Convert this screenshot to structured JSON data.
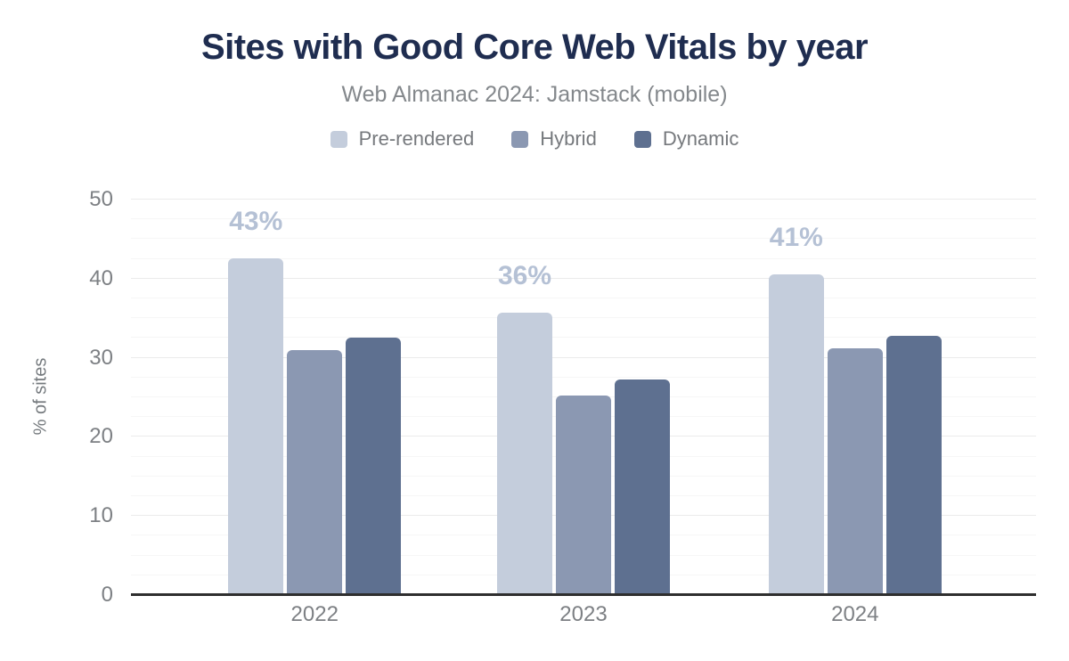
{
  "title": "Sites with Good Core Web Vitals by year",
  "subtitle": "Web Almanac 2024: Jamstack (mobile)",
  "legend": [
    {
      "label": "Pre-rendered",
      "color": "#c4cddc"
    },
    {
      "label": "Hybrid",
      "color": "#8b98b2"
    },
    {
      "label": "Dynamic",
      "color": "#5e7090"
    }
  ],
  "colors": {
    "title": "#1f2d50",
    "subtitle_text": "#84888c",
    "axis_text": "#7d8084",
    "axis_line": "#2e2e2e",
    "grid_major": "#ebebeb",
    "grid_minor": "#f6f6f6",
    "data_label": "#b5c1d5"
  },
  "chart_data": {
    "type": "bar",
    "title": "Sites with Good Core Web Vitals by year",
    "subtitle": "Web Almanac 2024: Jamstack (mobile)",
    "categories": [
      "2022",
      "2023",
      "2024"
    ],
    "series": [
      {
        "name": "Pre-rendered",
        "color": "#c4cddc",
        "values": [
          42.6,
          35.7,
          40.5
        ],
        "data_labels": [
          "43%",
          "36%",
          "41%"
        ]
      },
      {
        "name": "Hybrid",
        "color": "#8b98b2",
        "values": [
          31.0,
          25.2,
          31.2
        ],
        "data_labels": [
          null,
          null,
          null
        ]
      },
      {
        "name": "Dynamic",
        "color": "#5e7090",
        "values": [
          32.5,
          27.2,
          32.8
        ],
        "data_labels": [
          null,
          null,
          null
        ]
      }
    ],
    "xlabel": "",
    "ylabel": "% of sites",
    "ylim": [
      0,
      50
    ],
    "yticks": [
      0,
      10,
      20,
      30,
      40,
      50
    ],
    "minor_grid_step": 2.5,
    "grid": true,
    "legend_position": "top"
  }
}
